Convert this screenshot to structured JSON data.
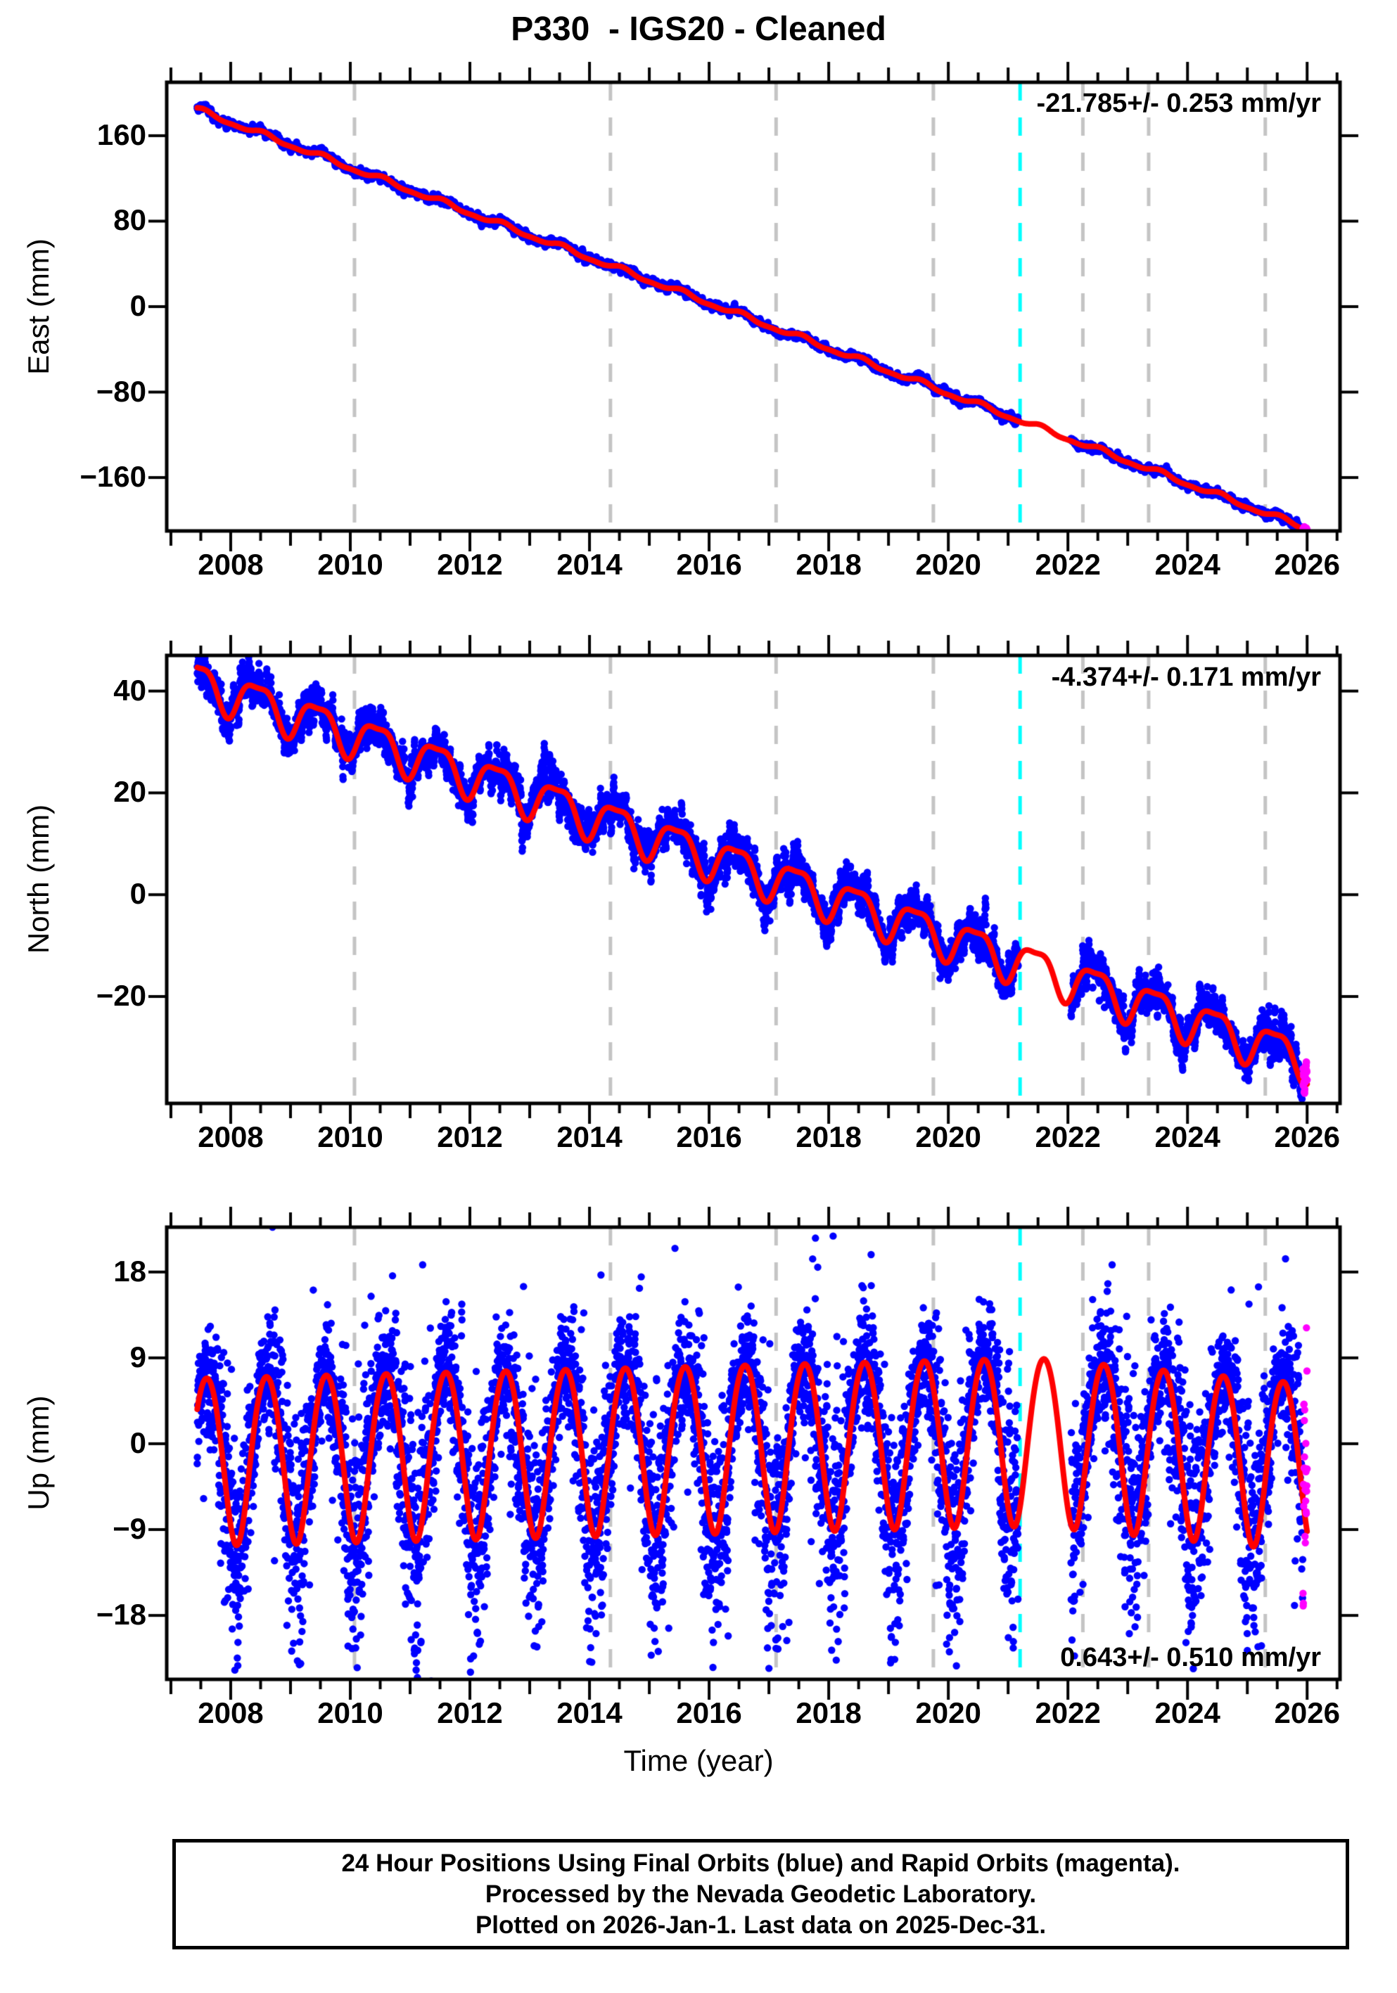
{
  "title": "P330  - IGS20 - Cleaned",
  "xlabel": "Time (year)",
  "time_axis": {
    "xlim": [
      2006.93,
      2026.55
    ],
    "ticks": [
      2008,
      2010,
      2012,
      2014,
      2016,
      2018,
      2020,
      2022,
      2024,
      2026
    ],
    "minor_step": 0.5,
    "data_span": [
      2007.44,
      2026.0
    ]
  },
  "events": {
    "gray_dashed_years": [
      2010.07,
      2014.35,
      2017.12,
      2019.75,
      2022.25,
      2023.35,
      2025.3
    ],
    "cyan_dashed_year": 2021.2,
    "data_gap_years": [
      2021.17,
      2022.05
    ],
    "rapid_orbit_start_year": 2025.93
  },
  "colors": {
    "final_orbit": "#0000ff",
    "rapid_orbit": "#ff00ff",
    "model_line": "#ff0000",
    "event_line": "#c4c4c4",
    "cyan_event_line": "#00ffff",
    "frame": "#000000",
    "background": "#ffffff"
  },
  "chart_data": [
    {
      "type": "scatter",
      "series": "East",
      "ylabel": "East (mm)",
      "yticks": [
        160,
        80,
        0,
        -80,
        -160
      ],
      "ylim": [
        -210,
        210
      ],
      "annotation": "-21.785+/- 0.253 mm/yr",
      "annotation_corner": "top-right",
      "rate_mm_yr": -21.785,
      "rate_sigma_mm_yr": 0.253,
      "trend": {
        "slope_mm_yr": -21.13,
        "zero_year": 2016.16
      },
      "seasonal": [
        [
          2.2,
          0.55,
          1
        ],
        [
          0.9,
          0.05,
          2
        ]
      ],
      "noise": {
        "sigma": 1.1,
        "ar": 0.85
      }
    },
    {
      "type": "scatter",
      "series": "North",
      "ylabel": "North (mm)",
      "yticks": [
        40,
        20,
        0,
        -20
      ],
      "ylim": [
        -41,
        47
      ],
      "annotation": "-4.374+/- 0.171 mm/yr",
      "annotation_corner": "top-right",
      "rate_mm_yr": -4.374,
      "rate_sigma_mm_yr": 0.171,
      "trend": {
        "slope_mm_yr": -4.0,
        "zero_year": 2017.9
      },
      "seasonal": [
        [
          4.0,
          0.45,
          1
        ],
        [
          -1.2,
          0.45,
          2
        ]
      ],
      "noise": {
        "sigma": 1.3,
        "ar": 0.8
      }
    },
    {
      "type": "scatter",
      "series": "Up",
      "ylabel": "Up (mm)",
      "yticks": [
        18,
        9,
        0,
        -9,
        -18
      ],
      "ylim": [
        -24.7,
        22.7
      ],
      "annotation": "0.643+/- 0.510 mm/yr",
      "annotation_corner": "bottom-right",
      "rate_mm_yr": 0.643,
      "rate_sigma_mm_yr": 0.51,
      "trend": {
        "slope_mm_yr": 0.15,
        "zero_year": 2016.5,
        "drift": {
          "start_year": 2021.5,
          "rate": -0.75
        }
      },
      "seasonal": [
        [
          8.8,
          0.6,
          1
        ],
        [
          -0.6,
          0.6,
          2
        ]
      ],
      "noise": {
        "sigma": 4.2,
        "ar": 0.35,
        "seasonal": 0.45,
        "outlier_p": 0.07,
        "outlier_mult": 2.0
      }
    }
  ],
  "footer": {
    "lines": [
      "24 Hour Positions Using Final Orbits (blue) and Rapid Orbits (magenta).",
      "Processed by the Nevada Geodetic Laboratory.",
      "Plotted on 2026-Jan-1. Last data on 2025-Dec-31."
    ]
  }
}
